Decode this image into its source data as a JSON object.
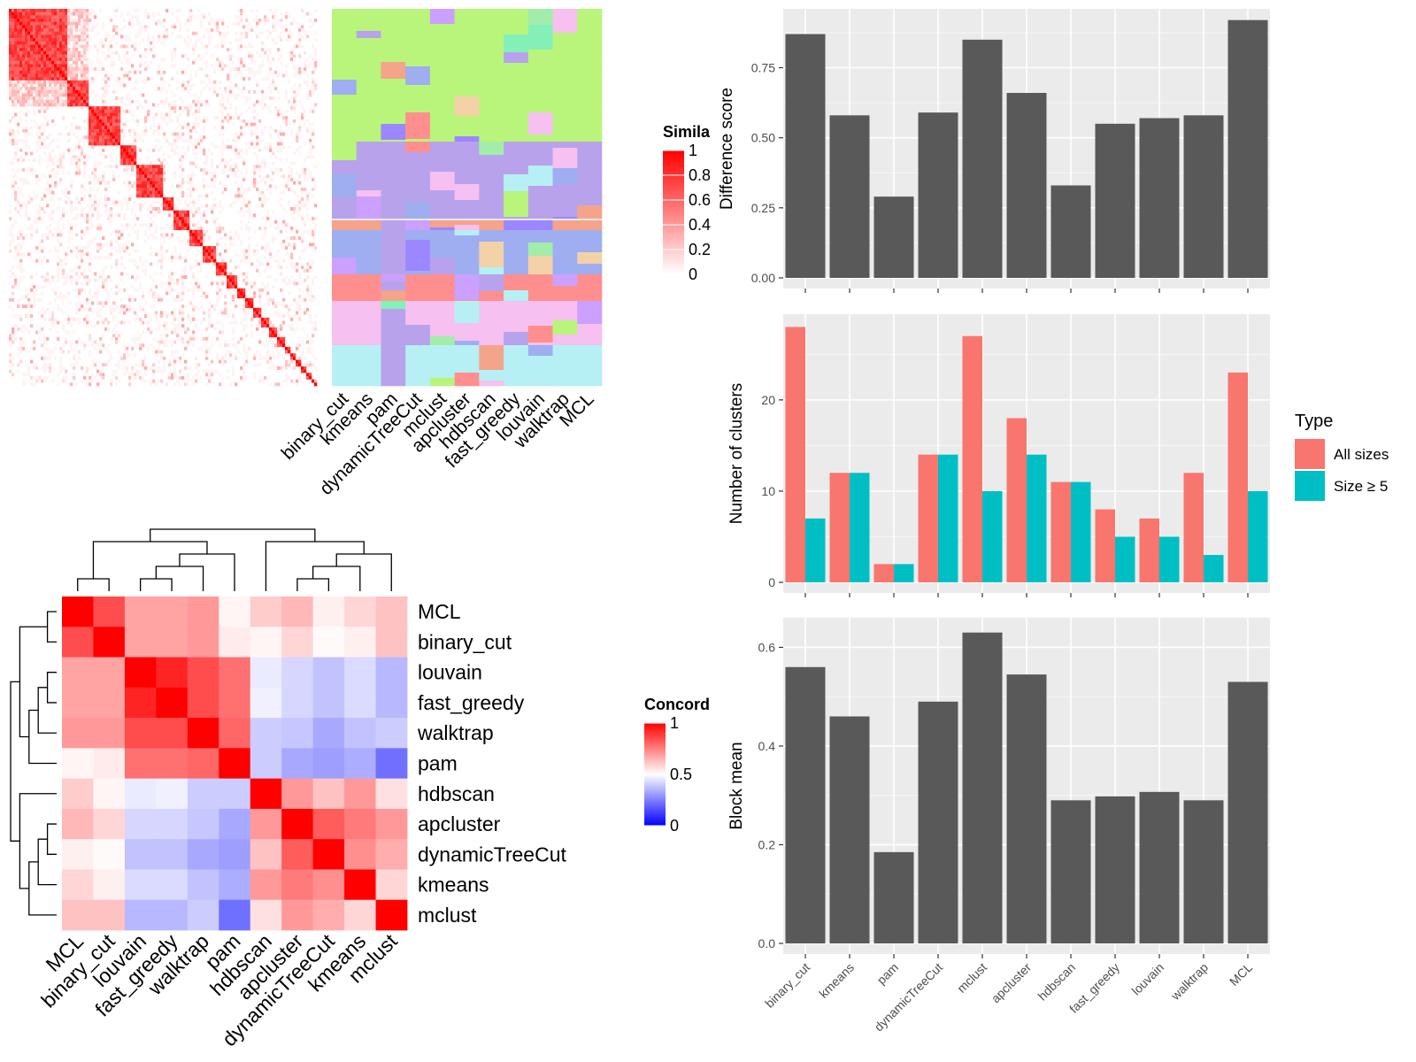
{
  "chart_data": [
    {
      "type": "heatmap",
      "panel": "similarity-heatmap",
      "legend_title": "Simila",
      "legend_ticks": [
        "1",
        "0.8",
        "0.6",
        "0.4",
        "0.2",
        "0"
      ],
      "colors": {
        "high": "#ff0000",
        "low": "#ffffff"
      },
      "method_columns": [
        "binary_cut",
        "kmeans",
        "pam",
        "dynamicTreeCut",
        "mclust",
        "apcluster",
        "hdbscan",
        "fast_greedy",
        "louvain",
        "walktrap",
        "MCL"
      ]
    },
    {
      "type": "heatmap",
      "panel": "concordance-heatmap",
      "legend_title": "Concord",
      "legend_ticks": [
        "1",
        "0.5",
        "0"
      ],
      "colors": {
        "high": "#ff0000",
        "mid": "#ffffff",
        "low": "#0000ff"
      },
      "rows": [
        "MCL",
        "binary_cut",
        "louvain",
        "fast_greedy",
        "walktrap",
        "pam",
        "hdbscan",
        "apcluster",
        "dynamicTreeCut",
        "kmeans",
        "mclust"
      ],
      "columns": [
        "MCL",
        "binary_cut",
        "louvain",
        "fast_greedy",
        "walktrap",
        "pam",
        "hdbscan",
        "apcluster",
        "dynamicTreeCut",
        "kmeans",
        "mclust"
      ],
      "values": [
        [
          1.0,
          0.85,
          0.68,
          0.68,
          0.7,
          0.52,
          0.6,
          0.64,
          0.53,
          0.58,
          0.62
        ],
        [
          0.85,
          1.0,
          0.68,
          0.68,
          0.7,
          0.54,
          0.52,
          0.58,
          0.51,
          0.53,
          0.62
        ],
        [
          0.68,
          0.68,
          1.0,
          0.93,
          0.85,
          0.78,
          0.46,
          0.42,
          0.38,
          0.43,
          0.36
        ],
        [
          0.68,
          0.68,
          0.93,
          1.0,
          0.85,
          0.78,
          0.47,
          0.42,
          0.38,
          0.43,
          0.36
        ],
        [
          0.7,
          0.7,
          0.85,
          0.85,
          1.0,
          0.8,
          0.4,
          0.39,
          0.33,
          0.38,
          0.4
        ],
        [
          0.52,
          0.54,
          0.78,
          0.78,
          0.8,
          1.0,
          0.4,
          0.33,
          0.31,
          0.34,
          0.22
        ],
        [
          0.6,
          0.52,
          0.46,
          0.47,
          0.4,
          0.4,
          1.0,
          0.7,
          0.62,
          0.7,
          0.56
        ],
        [
          0.64,
          0.58,
          0.42,
          0.42,
          0.39,
          0.33,
          0.7,
          1.0,
          0.82,
          0.76,
          0.7
        ],
        [
          0.53,
          0.51,
          0.38,
          0.38,
          0.33,
          0.31,
          0.62,
          0.82,
          1.0,
          0.72,
          0.66
        ],
        [
          0.58,
          0.53,
          0.43,
          0.43,
          0.38,
          0.34,
          0.7,
          0.76,
          0.72,
          1.0,
          0.58
        ],
        [
          0.62,
          0.62,
          0.36,
          0.36,
          0.4,
          0.22,
          0.56,
          0.7,
          0.66,
          0.58,
          1.0
        ]
      ]
    },
    {
      "type": "bar",
      "panel": "difference-score",
      "categories": [
        "binary_cut",
        "kmeans",
        "pam",
        "dynamicTreeCut",
        "mclust",
        "apcluster",
        "hdbscan",
        "fast_greedy",
        "louvain",
        "walktrap",
        "MCL"
      ],
      "values": [
        0.87,
        0.58,
        0.29,
        0.59,
        0.85,
        0.66,
        0.33,
        0.55,
        0.57,
        0.58,
        0.92
      ],
      "xlabel": "",
      "ylabel": "Difference score",
      "ylim": [
        0,
        0.96
      ],
      "yticks": [
        "0.00",
        "0.25",
        "0.50",
        "0.75"
      ],
      "colors": {
        "bar": "#595959",
        "panel": "#ebebeb"
      },
      "grid": true
    },
    {
      "type": "bar",
      "panel": "number-of-clusters",
      "categories": [
        "binary_cut",
        "kmeans",
        "pam",
        "dynamicTreeCut",
        "mclust",
        "apcluster",
        "hdbscan",
        "fast_greedy",
        "louvain",
        "walktrap",
        "MCL"
      ],
      "series": [
        {
          "name": "All sizes",
          "values": [
            28,
            12,
            2,
            14,
            27,
            18,
            11,
            8,
            7,
            12,
            23
          ],
          "color": "#f8766d"
        },
        {
          "name": "Size ≥ 5",
          "values": [
            7,
            12,
            2,
            14,
            10,
            14,
            11,
            5,
            5,
            3,
            10
          ],
          "color": "#00bfc4"
        }
      ],
      "xlabel": "",
      "ylabel": "Number of clusters",
      "ylim": [
        0,
        29.4
      ],
      "yticks": [
        "0",
        "10",
        "20"
      ],
      "legend_title": "Type",
      "legend_position": "right",
      "grid": true
    },
    {
      "type": "bar",
      "panel": "block-mean",
      "categories": [
        "binary_cut",
        "kmeans",
        "pam",
        "dynamicTreeCut",
        "mclust",
        "apcluster",
        "hdbscan",
        "fast_greedy",
        "louvain",
        "walktrap",
        "MCL"
      ],
      "values": [
        0.56,
        0.46,
        0.185,
        0.49,
        0.63,
        0.545,
        0.29,
        0.298,
        0.307,
        0.29,
        0.53
      ],
      "xlabel": "",
      "ylabel": "Block mean",
      "ylim": [
        0,
        0.66
      ],
      "yticks": [
        "0.0",
        "0.2",
        "0.4",
        "0.6"
      ],
      "colors": {
        "bar": "#595959",
        "panel": "#ebebeb"
      },
      "grid": true
    }
  ]
}
